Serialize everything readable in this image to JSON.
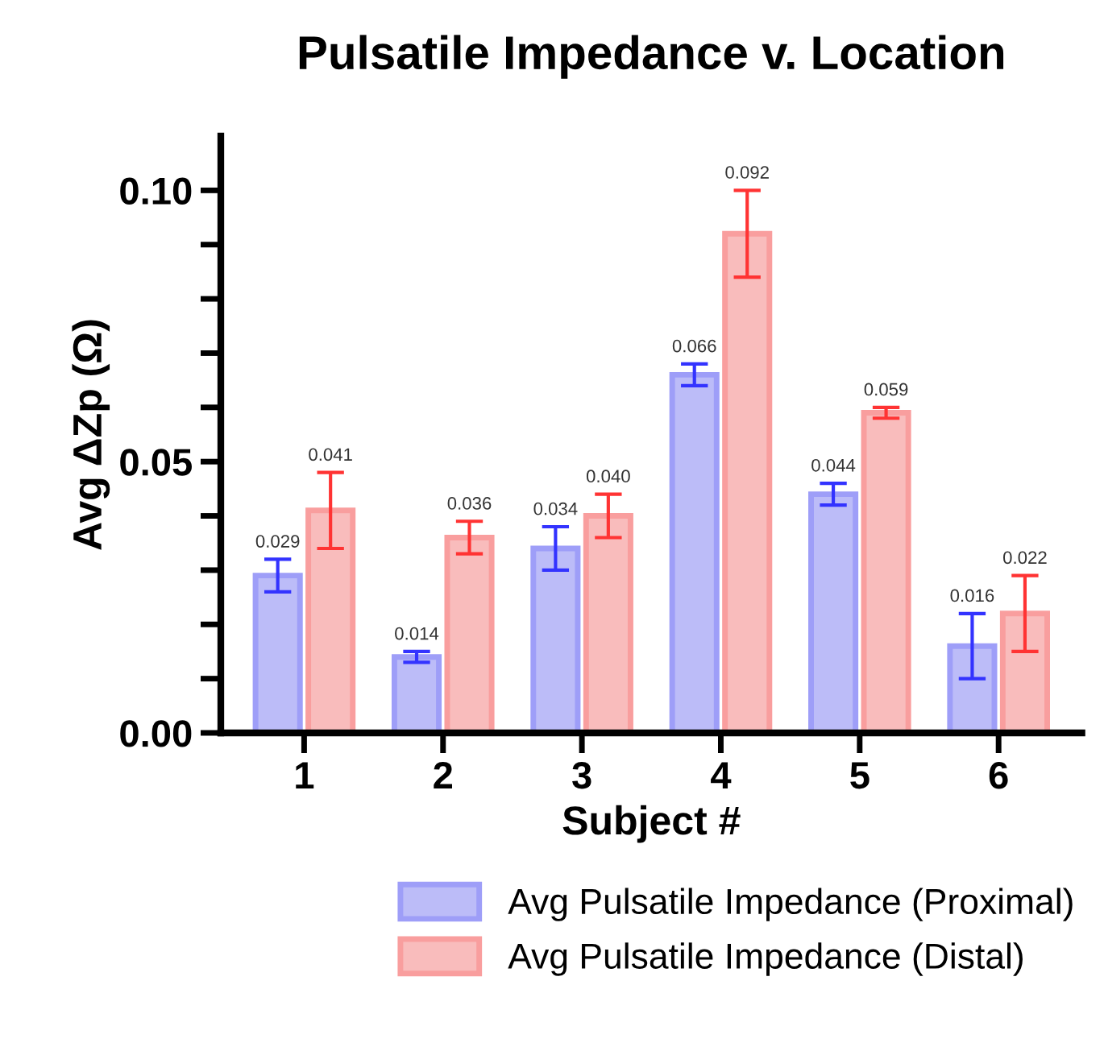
{
  "chart_data": {
    "type": "bar",
    "title": "Pulsatile Impedance v. Location",
    "xlabel": "Subject #",
    "ylabel": "Avg ΔZp (Ω)",
    "categories": [
      "1",
      "2",
      "3",
      "4",
      "5",
      "6"
    ],
    "series": [
      {
        "name": "Avg Pulsatile Impedance (Proximal)",
        "color": "#bcbcf8",
        "values": [
          0.029,
          0.014,
          0.034,
          0.066,
          0.044,
          0.016
        ],
        "value_labels": [
          "0.029",
          "0.014",
          "0.034",
          "0.066",
          "0.044",
          "0.016"
        ],
        "errors": [
          0.003,
          0.001,
          0.004,
          0.002,
          0.002,
          0.006
        ]
      },
      {
        "name": "Avg Pulsatile Impedance (Distal)",
        "color": "#f9bcbc",
        "values": [
          0.041,
          0.036,
          0.04,
          0.092,
          0.059,
          0.022
        ],
        "value_labels": [
          "0.041",
          "0.036",
          "0.040",
          "0.092",
          "0.059",
          "0.022"
        ],
        "errors": [
          0.007,
          0.003,
          0.004,
          0.008,
          0.001,
          0.007
        ]
      }
    ],
    "ylim": [
      0,
      0.11
    ],
    "yticks": [
      {
        "value": 0.0,
        "label": "0.00"
      },
      {
        "value": 0.01,
        "label": null
      },
      {
        "value": 0.02,
        "label": null
      },
      {
        "value": 0.03,
        "label": null
      },
      {
        "value": 0.04,
        "label": null
      },
      {
        "value": 0.05,
        "label": "0.05"
      },
      {
        "value": 0.06,
        "label": null
      },
      {
        "value": 0.07,
        "label": null
      },
      {
        "value": 0.08,
        "label": null
      },
      {
        "value": 0.09,
        "label": null
      },
      {
        "value": 0.1,
        "label": "0.10"
      }
    ],
    "legend": "bottom",
    "grid": false
  }
}
